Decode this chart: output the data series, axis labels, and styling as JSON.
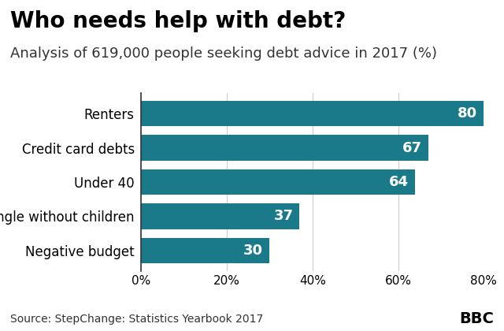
{
  "title": "Who needs help with debt?",
  "subtitle": "Analysis of 619,000 people seeking debt advice in 2017 (%)",
  "categories": [
    "Negative budget",
    "Single without children",
    "Under 40",
    "Credit card debts",
    "Renters"
  ],
  "values": [
    30,
    37,
    64,
    67,
    80
  ],
  "bar_color": "#1a7a8a",
  "label_color": "#ffffff",
  "xlim": [
    0,
    80
  ],
  "xtick_labels": [
    "0%",
    "20%",
    "40%",
    "60%",
    "80%"
  ],
  "xtick_values": [
    0,
    20,
    40,
    60,
    80
  ],
  "source_text": "Source: StepChange: Statistics Yearbook 2017",
  "bbc_text": "BBC",
  "background_color": "#ffffff",
  "footer_background": "#d0d0d0",
  "title_fontsize": 20,
  "subtitle_fontsize": 13,
  "label_fontsize": 12,
  "ytick_fontsize": 12,
  "xtick_fontsize": 11,
  "source_fontsize": 10,
  "bar_value_fontsize": 13
}
